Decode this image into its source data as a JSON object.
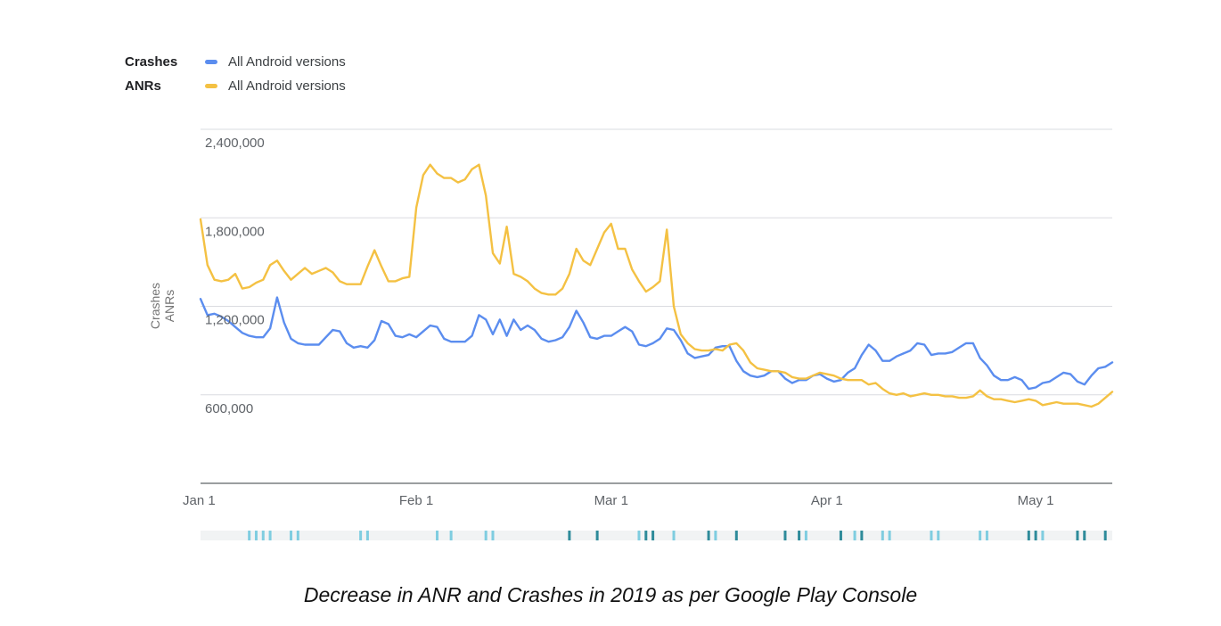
{
  "legend": {
    "rows": [
      {
        "metric": "Crashes",
        "series": "All Android versions",
        "color": "#5b8def"
      },
      {
        "metric": "ANRs",
        "series": "All Android versions",
        "color": "#f4c143"
      }
    ]
  },
  "caption": "Decrease in ANR and Crashes in 2019 as per Google Play Console",
  "chart_data": {
    "type": "line",
    "title": "",
    "xlabel": "",
    "ylabel": "Crashes ANRs",
    "ylabel_lines": [
      "Crashes",
      "ANRs"
    ],
    "ylim": [
      0,
      2400000
    ],
    "yticks": [
      600000,
      1200000,
      1800000,
      2400000
    ],
    "ytick_labels": [
      "600,000",
      "1,200,000",
      "1,800,000",
      "2,400,000"
    ],
    "xlim_days": [
      0,
      131
    ],
    "xticks": [
      {
        "day": 0,
        "label": "Jan 1"
      },
      {
        "day": 31,
        "label": "Feb 1"
      },
      {
        "day": 59,
        "label": "Mar 1"
      },
      {
        "day": 90,
        "label": "Apr 1"
      },
      {
        "day": 120,
        "label": "May 1"
      }
    ],
    "grid": true,
    "series": [
      {
        "name": "Crashes - All Android versions",
        "color": "#5b8def",
        "values": [
          1250000,
          1140000,
          1150000,
          1130000,
          1100000,
          1060000,
          1020000,
          1000000,
          990000,
          990000,
          1050000,
          1260000,
          1090000,
          980000,
          950000,
          940000,
          940000,
          940000,
          990000,
          1040000,
          1030000,
          950000,
          920000,
          930000,
          920000,
          970000,
          1100000,
          1080000,
          1000000,
          990000,
          1010000,
          990000,
          1030000,
          1070000,
          1060000,
          980000,
          960000,
          960000,
          960000,
          1000000,
          1140000,
          1110000,
          1010000,
          1110000,
          1000000,
          1110000,
          1040000,
          1070000,
          1040000,
          980000,
          960000,
          970000,
          990000,
          1060000,
          1170000,
          1090000,
          990000,
          980000,
          1000000,
          1000000,
          1030000,
          1060000,
          1030000,
          940000,
          930000,
          950000,
          980000,
          1050000,
          1040000,
          970000,
          880000,
          850000,
          860000,
          870000,
          920000,
          930000,
          930000,
          830000,
          760000,
          730000,
          720000,
          730000,
          760000,
          760000,
          710000,
          680000,
          700000,
          700000,
          730000,
          740000,
          710000,
          690000,
          700000,
          750000,
          780000,
          870000,
          940000,
          900000,
          830000,
          830000,
          860000,
          880000,
          900000,
          950000,
          940000,
          870000,
          880000,
          880000,
          890000,
          920000,
          950000,
          950000,
          850000,
          800000,
          730000,
          700000,
          700000,
          720000,
          700000,
          640000,
          650000,
          680000,
          690000,
          720000,
          750000,
          740000,
          690000,
          670000,
          730000,
          780000,
          790000,
          820000
        ]
      },
      {
        "name": "ANRs - All Android versions",
        "color": "#f4c143",
        "values": [
          1790000,
          1480000,
          1380000,
          1370000,
          1380000,
          1420000,
          1320000,
          1330000,
          1360000,
          1380000,
          1480000,
          1510000,
          1440000,
          1380000,
          1420000,
          1460000,
          1420000,
          1440000,
          1460000,
          1430000,
          1370000,
          1350000,
          1350000,
          1350000,
          1470000,
          1580000,
          1470000,
          1370000,
          1370000,
          1390000,
          1400000,
          1870000,
          2090000,
          2160000,
          2100000,
          2070000,
          2070000,
          2040000,
          2060000,
          2130000,
          2160000,
          1950000,
          1560000,
          1490000,
          1740000,
          1420000,
          1400000,
          1370000,
          1320000,
          1290000,
          1280000,
          1280000,
          1320000,
          1420000,
          1590000,
          1510000,
          1480000,
          1590000,
          1700000,
          1760000,
          1590000,
          1590000,
          1450000,
          1370000,
          1300000,
          1330000,
          1370000,
          1720000,
          1200000,
          1010000,
          950000,
          910000,
          900000,
          900000,
          910000,
          900000,
          940000,
          950000,
          900000,
          820000,
          780000,
          770000,
          760000,
          760000,
          750000,
          720000,
          710000,
          710000,
          730000,
          750000,
          740000,
          730000,
          710000,
          700000,
          700000,
          700000,
          670000,
          680000,
          640000,
          610000,
          600000,
          610000,
          590000,
          600000,
          610000,
          600000,
          600000,
          590000,
          590000,
          580000,
          580000,
          590000,
          630000,
          590000,
          570000,
          570000,
          560000,
          550000,
          560000,
          570000,
          560000,
          530000,
          540000,
          550000,
          540000,
          540000,
          540000,
          530000,
          520000,
          540000,
          580000,
          620000
        ]
      }
    ],
    "annotation_strip": {
      "marks": [
        {
          "day": 7,
          "shade": "light"
        },
        {
          "day": 8,
          "shade": "light"
        },
        {
          "day": 9,
          "shade": "light"
        },
        {
          "day": 10,
          "shade": "light"
        },
        {
          "day": 13,
          "shade": "light"
        },
        {
          "day": 14,
          "shade": "light"
        },
        {
          "day": 23,
          "shade": "light"
        },
        {
          "day": 24,
          "shade": "light"
        },
        {
          "day": 34,
          "shade": "light"
        },
        {
          "day": 36,
          "shade": "light"
        },
        {
          "day": 41,
          "shade": "light"
        },
        {
          "day": 42,
          "shade": "light"
        },
        {
          "day": 53,
          "shade": "dark"
        },
        {
          "day": 57,
          "shade": "dark"
        },
        {
          "day": 63,
          "shade": "light"
        },
        {
          "day": 64,
          "shade": "dark"
        },
        {
          "day": 65,
          "shade": "dark"
        },
        {
          "day": 68,
          "shade": "light"
        },
        {
          "day": 73,
          "shade": "dark"
        },
        {
          "day": 74,
          "shade": "light"
        },
        {
          "day": 77,
          "shade": "dark"
        },
        {
          "day": 84,
          "shade": "dark"
        },
        {
          "day": 86,
          "shade": "dark"
        },
        {
          "day": 87,
          "shade": "light"
        },
        {
          "day": 92,
          "shade": "dark"
        },
        {
          "day": 94,
          "shade": "light"
        },
        {
          "day": 95,
          "shade": "dark"
        },
        {
          "day": 98,
          "shade": "light"
        },
        {
          "day": 99,
          "shade": "light"
        },
        {
          "day": 105,
          "shade": "light"
        },
        {
          "day": 106,
          "shade": "light"
        },
        {
          "day": 112,
          "shade": "light"
        },
        {
          "day": 113,
          "shade": "light"
        },
        {
          "day": 119,
          "shade": "dark"
        },
        {
          "day": 120,
          "shade": "dark"
        },
        {
          "day": 121,
          "shade": "light"
        },
        {
          "day": 126,
          "shade": "dark"
        },
        {
          "day": 127,
          "shade": "dark"
        },
        {
          "day": 130,
          "shade": "dark"
        }
      ]
    }
  }
}
